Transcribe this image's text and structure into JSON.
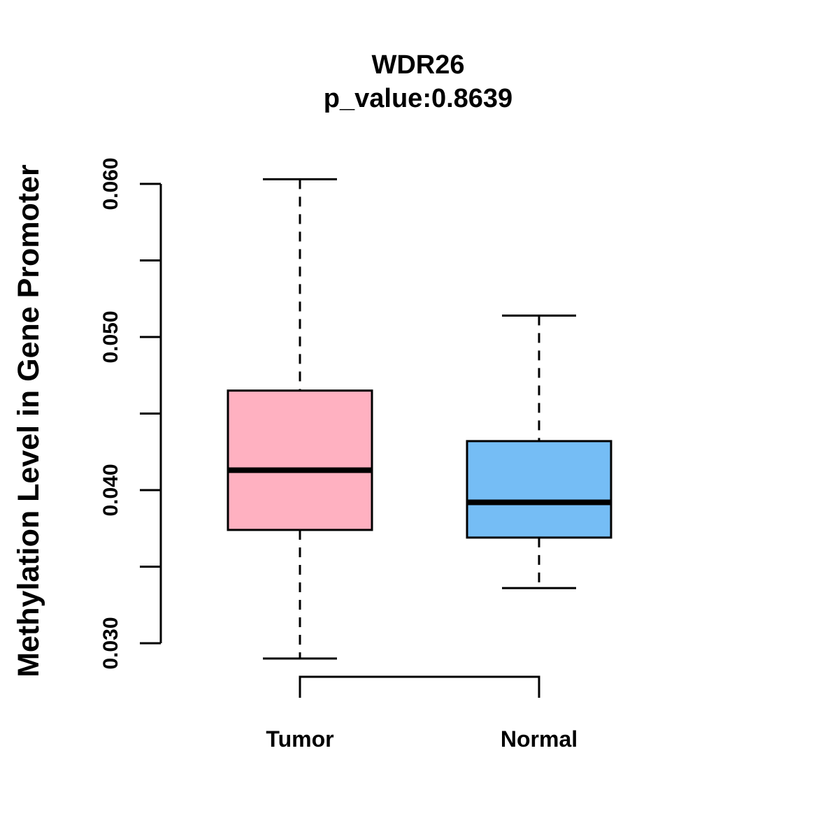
{
  "page": {
    "background_color": "#FFFFFF",
    "text_color": "#000000"
  },
  "chart_data": {
    "type": "boxplot",
    "title": "WDR26",
    "subtitle": "p_value:0.8639",
    "ylabel": "Methylation Level in Gene Promoter",
    "xlabel": "",
    "ylim": [
      0.03,
      0.06
    ],
    "grid": false,
    "legend": "none",
    "yticks_labeled": [
      {
        "value": 0.03,
        "label": "0.030"
      },
      {
        "value": 0.04,
        "label": "0.040"
      },
      {
        "value": 0.05,
        "label": "0.050"
      },
      {
        "value": 0.06,
        "label": "0.060"
      }
    ],
    "yticks_minor": [
      0.035,
      0.045,
      0.055
    ],
    "whisker_style": "dashed",
    "groups": [
      {
        "label": "Tumor",
        "fill": "#FFB1C1",
        "stroke": "#000000",
        "stats": {
          "whisker_low": 0.029,
          "q1": 0.0374,
          "median": 0.0413,
          "q3": 0.0465,
          "whisker_high": 0.0603
        }
      },
      {
        "label": "Normal",
        "fill": "#75BDF5",
        "stroke": "#000000",
        "stats": {
          "whisker_low": 0.0336,
          "q1": 0.0369,
          "median": 0.0392,
          "q3": 0.0432,
          "whisker_high": 0.0514
        }
      }
    ]
  }
}
